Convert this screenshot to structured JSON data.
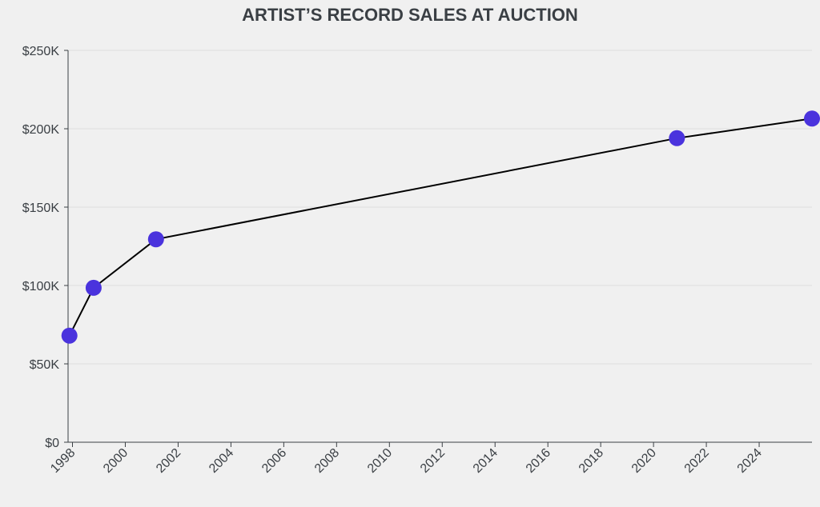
{
  "chart_data": {
    "type": "line",
    "title": "ARTIST’S RECORD SALES AT AUCTION",
    "xlabel": "",
    "ylabel": "",
    "x_axis": {
      "kind": "date",
      "min": "1997-11-01",
      "max": "2026-01-01",
      "ticks": [
        "1998",
        "2000",
        "2002",
        "2004",
        "2006",
        "2008",
        "2010",
        "2012",
        "2014",
        "2016",
        "2018",
        "2020",
        "2022",
        "2024"
      ]
    },
    "y_axis": {
      "min": 0,
      "max": 250000,
      "ticks": [
        {
          "value": 0,
          "label": "$0"
        },
        {
          "value": 50000,
          "label": "$50K"
        },
        {
          "value": 100000,
          "label": "$100K"
        },
        {
          "value": 150000,
          "label": "$150K"
        },
        {
          "value": 200000,
          "label": "$200K"
        },
        {
          "value": 250000,
          "label": "$250K"
        }
      ]
    },
    "grid": true,
    "series": [
      {
        "color": "#4a33dd",
        "line_color": "#000000",
        "points": [
          {
            "x": "1997-11-20",
            "y": 68000
          },
          {
            "x": "1998-10-20",
            "y": 98500
          },
          {
            "x": "2001-03-01",
            "y": 129500
          },
          {
            "x": "2020-11-20",
            "y": 194000
          },
          {
            "x": "2026-01-01",
            "y": 206500
          }
        ]
      }
    ]
  }
}
